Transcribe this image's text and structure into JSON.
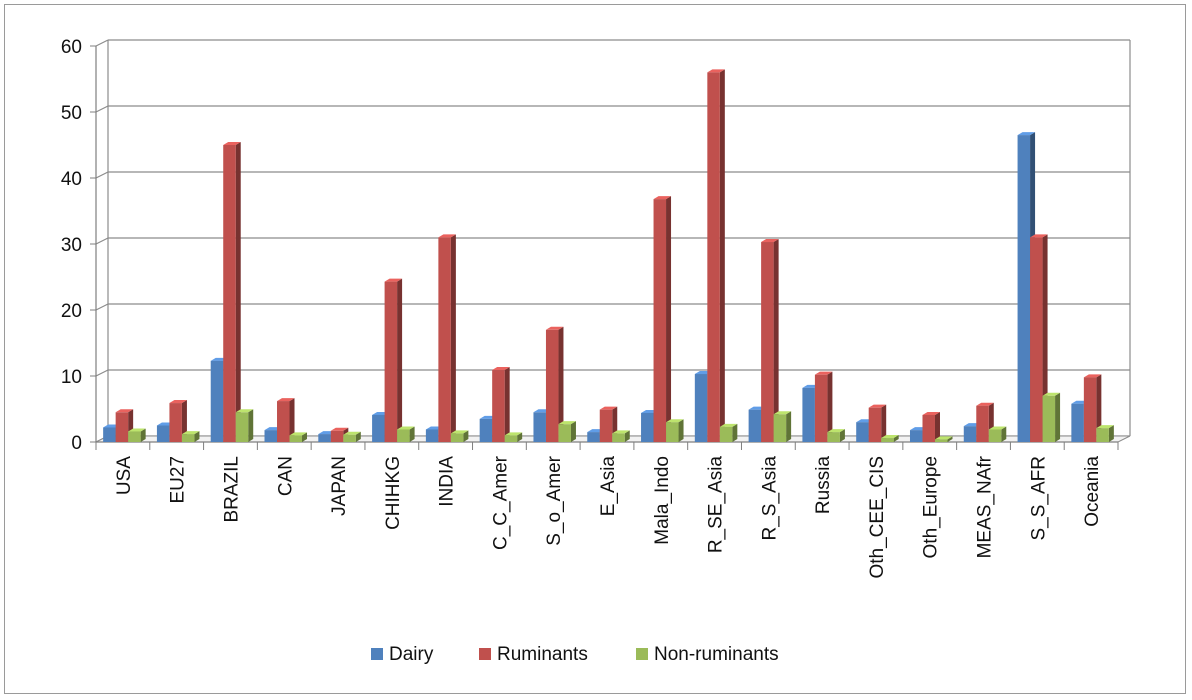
{
  "chart_data": {
    "type": "bar",
    "title": "",
    "xlabel": "",
    "ylabel": "",
    "ylim": [
      0,
      60
    ],
    "yticks": [
      0,
      10,
      20,
      30,
      40,
      50,
      60
    ],
    "grid": true,
    "legend_position": "bottom",
    "categories": [
      "USA",
      "EU27",
      "BRAZIL",
      "CAN",
      "JAPAN",
      "CHIHKG",
      "INDIA",
      "C_C_Amer",
      "S_o_Amer",
      "E_Asia",
      "Mala_Indo",
      "R_SE_Asia",
      "R_S_Asia",
      "Russia",
      "Oth_CEE_CIS",
      "Oth_Europe",
      "MEAS_NAfr",
      "S_S_AFR",
      "Oceania"
    ],
    "series": [
      {
        "name": "Dairy",
        "color": "#4f81bd",
        "values": [
          2.2,
          2.5,
          12.3,
          1.8,
          1.2,
          4.1,
          1.9,
          3.5,
          4.5,
          1.5,
          4.4,
          10.3,
          4.9,
          8.2,
          3.0,
          1.8,
          2.4,
          46.5,
          5.8
        ]
      },
      {
        "name": "Ruminants",
        "color": "#c0504d",
        "values": [
          4.5,
          5.9,
          45.0,
          6.2,
          1.7,
          24.3,
          31.0,
          10.9,
          17.0,
          4.9,
          36.8,
          56.0,
          30.3,
          10.2,
          5.2,
          4.1,
          5.5,
          31.0,
          9.8
        ]
      },
      {
        "name": "Non-ruminants",
        "color": "#9bbb59",
        "values": [
          1.6,
          1.2,
          4.5,
          1.0,
          1.1,
          1.9,
          1.3,
          1.0,
          2.7,
          1.3,
          3.0,
          2.3,
          4.2,
          1.5,
          0.6,
          0.4,
          1.9,
          7.0,
          2.1
        ]
      }
    ]
  }
}
